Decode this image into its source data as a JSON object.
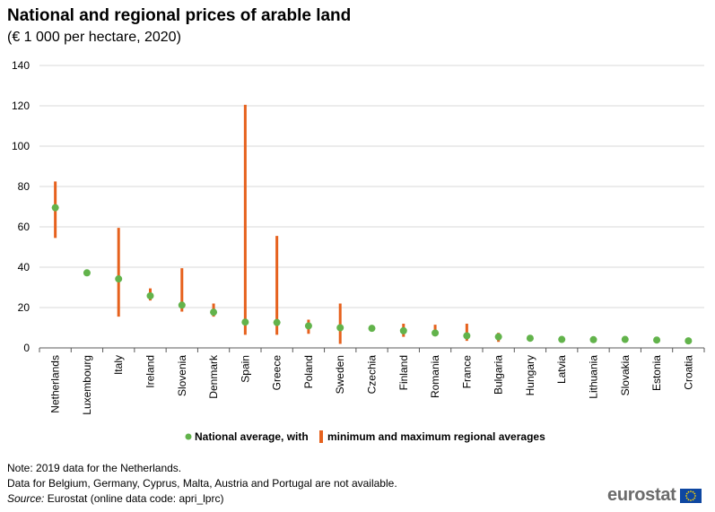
{
  "title": "National and regional prices of arable land",
  "subtitle": "(€ 1 000 per hectare, 2020)",
  "colors": {
    "point": "#62b34b",
    "range": "#e6611d",
    "grid": "#d9d9d9",
    "axis": "#595959"
  },
  "chart_data": {
    "type": "scatter",
    "title": "National and regional prices of arable land",
    "subtitle": "(€ 1 000 per hectare, 2020)",
    "ylim": [
      0,
      140
    ],
    "yticks": [
      0,
      20,
      40,
      60,
      80,
      100,
      120,
      140
    ],
    "grid": true,
    "categories": [
      "Netherlands",
      "Luxembourg",
      "Italy",
      "Ireland",
      "Slovenia",
      "Denmark",
      "Spain",
      "Greece",
      "Poland",
      "Sweden",
      "Czechia",
      "Finland",
      "Romania",
      "France",
      "Bulgaria",
      "Hungary",
      "Latvia",
      "Lithuania",
      "Slovakia",
      "Estonia",
      "Croatia"
    ],
    "series": [
      {
        "name": "National average, with",
        "marker": "point",
        "values": [
          69.5,
          37.2,
          34.2,
          25.8,
          21.2,
          17.7,
          12.8,
          12.6,
          10.9,
          10.0,
          9.7,
          8.5,
          7.4,
          6.0,
          5.5,
          4.8,
          4.2,
          4.1,
          4.2,
          3.9,
          3.5
        ]
      },
      {
        "name": "minimum and maximum regional averages",
        "marker": "range",
        "min": [
          54.5,
          null,
          15.5,
          23.5,
          18.0,
          15.5,
          6.5,
          6.5,
          7.0,
          2.0,
          null,
          5.5,
          6.0,
          3.5,
          3.0,
          null,
          null,
          null,
          null,
          null,
          null
        ],
        "max": [
          82.5,
          null,
          59.5,
          29.5,
          39.5,
          22.0,
          120.5,
          55.5,
          14.0,
          22.0,
          null,
          12.0,
          11.5,
          12.0,
          7.5,
          null,
          null,
          null,
          null,
          null,
          null
        ]
      }
    ],
    "legend": {
      "position": "bottom-center",
      "entries": [
        "National average, with",
        "minimum and maximum regional averages"
      ]
    }
  },
  "notes": {
    "line1": "Note: 2019 data for the Netherlands.",
    "line2": "Data for Belgium, Germany, Cyprus, Malta, Austria and Portugal are not available.",
    "source_label": "Source:",
    "source_text": " Eurostat (online data code: apri_lprc)"
  },
  "logo": {
    "text": "eurostat"
  }
}
